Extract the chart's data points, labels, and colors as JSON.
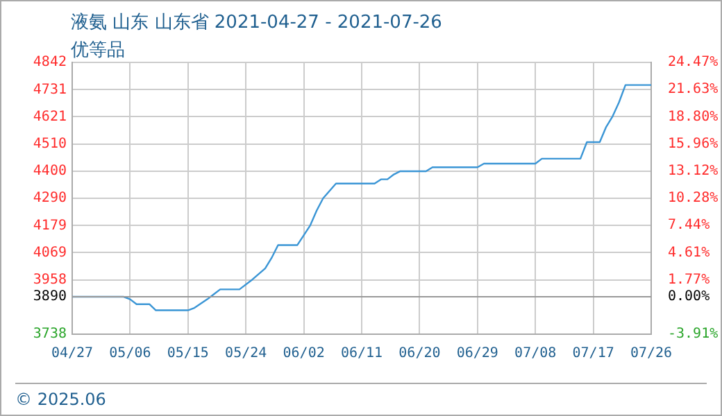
{
  "chart_data": {
    "type": "line",
    "title": "液氨 山东 山东省 2021-04-27 - 2021-07-26",
    "subtitle": "优等品",
    "x": [
      "2021-04-27",
      "2021-05-05",
      "2021-05-06",
      "2021-05-07",
      "2021-05-09",
      "2021-05-10",
      "2021-05-15",
      "2021-05-16",
      "2021-05-18",
      "2021-05-19",
      "2021-05-20",
      "2021-05-23",
      "2021-05-25",
      "2021-05-27",
      "2021-05-28",
      "2021-05-29",
      "2021-06-01",
      "2021-06-03",
      "2021-06-04",
      "2021-06-05",
      "2021-06-07",
      "2021-06-13",
      "2021-06-14",
      "2021-06-15",
      "2021-06-16",
      "2021-06-17",
      "2021-06-21",
      "2021-06-22",
      "2021-06-29",
      "2021-06-30",
      "2021-07-08",
      "2021-07-09",
      "2021-07-15",
      "2021-07-16",
      "2021-07-18",
      "2021-07-19",
      "2021-07-20",
      "2021-07-21",
      "2021-07-22",
      "2021-07-26"
    ],
    "series": [
      {
        "color": "#3a95d5",
        "values": [
          3890,
          3890,
          3880,
          3860,
          3860,
          3835,
          3835,
          3845,
          3880,
          3900,
          3920,
          3920,
          3960,
          4005,
          4048,
          4100,
          4100,
          4180,
          4240,
          4290,
          4350,
          4350,
          4367,
          4367,
          4387,
          4400,
          4400,
          4416,
          4416,
          4431,
          4431,
          4451,
          4451,
          4518,
          4518,
          4580,
          4623,
          4680,
          4750,
          4750
        ]
      }
    ],
    "xlim": [
      "2021-04-27",
      "2021-07-26"
    ],
    "xticks": [
      {
        "value": "2021-04-27",
        "label": "04/27"
      },
      {
        "value": "2021-05-06",
        "label": "05/06"
      },
      {
        "value": "2021-05-15",
        "label": "05/15"
      },
      {
        "value": "2021-05-24",
        "label": "05/24"
      },
      {
        "value": "2021-06-02",
        "label": "06/02"
      },
      {
        "value": "2021-06-11",
        "label": "06/11"
      },
      {
        "value": "2021-06-20",
        "label": "06/20"
      },
      {
        "value": "2021-06-29",
        "label": "06/29"
      },
      {
        "value": "2021-07-08",
        "label": "07/08"
      },
      {
        "value": "2021-07-17",
        "label": "07/17"
      },
      {
        "value": "2021-07-26",
        "label": "07/26"
      }
    ],
    "ylim": [
      3738,
      4842
    ],
    "yticks": [
      3738,
      3890,
      3958,
      4069,
      4179,
      4290,
      4400,
      4510,
      4621,
      4731,
      4842
    ],
    "y2lim": [
      -3.91,
      24.47
    ],
    "y2ticks": [
      {
        "value": -3.91,
        "label": "-3.91%"
      },
      {
        "value": 0,
        "label": "0.00%"
      },
      {
        "value": 1.77,
        "label": "1.77%"
      },
      {
        "value": 4.61,
        "label": "4.61%"
      },
      {
        "value": 7.44,
        "label": "7.44%"
      },
      {
        "value": 10.28,
        "label": "10.28%"
      },
      {
        "value": 13.12,
        "label": "13.12%"
      },
      {
        "value": 15.96,
        "label": "15.96%"
      },
      {
        "value": 18.8,
        "label": "18.80%"
      },
      {
        "value": 21.63,
        "label": "21.63%"
      },
      {
        "value": 24.47,
        "label": "24.47%"
      }
    ],
    "ref_lines": [
      {
        "axis": "y",
        "value": 3890,
        "color": "#999999"
      }
    ],
    "grid": true,
    "annotations": [
      "© 2025.06"
    ]
  }
}
